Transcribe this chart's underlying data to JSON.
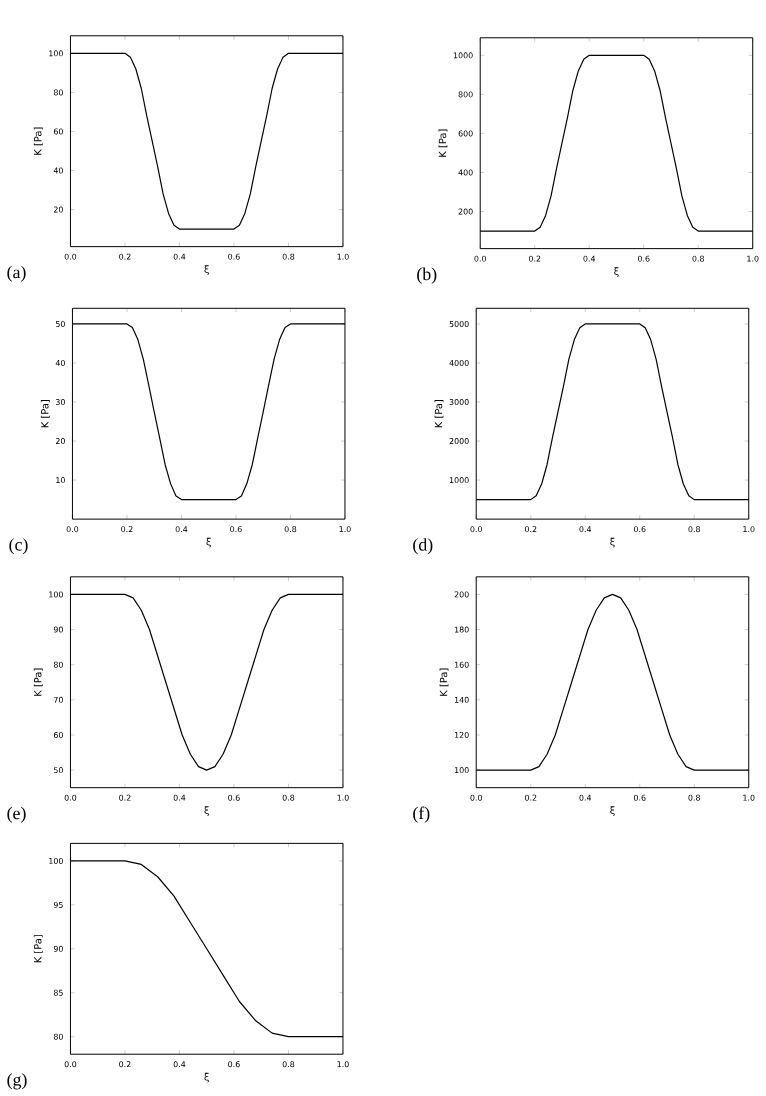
{
  "chart_data": [
    {
      "type": "line",
      "xlabel": "ξ",
      "ylabel": "K [Pa]",
      "annotations": [
        "(a)"
      ],
      "color": "#000000",
      "xlim": [
        0,
        1
      ],
      "ylim": [
        1,
        109
      ],
      "xticks": [
        {
          "value": 0,
          "label": "0.0"
        },
        {
          "value": 0.2,
          "label": "0.2"
        },
        {
          "value": 0.4,
          "label": "0.4"
        },
        {
          "value": 0.6,
          "label": "0.6"
        },
        {
          "value": 0.8,
          "label": "0.8"
        },
        {
          "value": 1,
          "label": "1.0"
        }
      ],
      "yticks": [
        20,
        40,
        60,
        80,
        100
      ],
      "x": [
        0,
        0.2,
        0.22,
        0.24,
        0.26,
        0.28,
        0.3,
        0.32,
        0.34,
        0.36,
        0.38,
        0.4,
        0.6,
        0.62,
        0.64,
        0.66,
        0.68,
        0.7,
        0.72,
        0.74,
        0.76,
        0.78,
        0.8,
        1
      ],
      "values": [
        100,
        100,
        98,
        92,
        82,
        68,
        55,
        42,
        28,
        18,
        12,
        10,
        10,
        12,
        18,
        28,
        42,
        55,
        68,
        82,
        92,
        98,
        100,
        100
      ]
    },
    {
      "type": "line",
      "xlabel": "ξ",
      "ylabel": "K [Pa]",
      "annotations": [
        "(b)"
      ],
      "color": "#000000",
      "xlim": [
        0,
        1
      ],
      "ylim": [
        10,
        1090
      ],
      "xticks": [
        {
          "value": 0,
          "label": "0.0"
        },
        {
          "value": 0.2,
          "label": "0.2"
        },
        {
          "value": 0.4,
          "label": "0.4"
        },
        {
          "value": 0.6,
          "label": "0.6"
        },
        {
          "value": 0.8,
          "label": "0.8"
        },
        {
          "value": 1,
          "label": "1.0"
        }
      ],
      "yticks": [
        200,
        400,
        600,
        800,
        1000
      ],
      "x": [
        0,
        0.2,
        0.22,
        0.24,
        0.26,
        0.28,
        0.3,
        0.32,
        0.34,
        0.36,
        0.38,
        0.4,
        0.6,
        0.62,
        0.64,
        0.66,
        0.68,
        0.7,
        0.72,
        0.74,
        0.76,
        0.78,
        0.8,
        1
      ],
      "values": [
        100,
        100,
        120,
        180,
        280,
        420,
        550,
        680,
        820,
        920,
        980,
        1000,
        1000,
        980,
        920,
        820,
        680,
        550,
        420,
        280,
        180,
        120,
        100,
        100
      ]
    },
    {
      "type": "line",
      "xlabel": "ξ",
      "ylabel": "K [Pa]",
      "annotations": [
        "(c)"
      ],
      "color": "#000000",
      "xlim": [
        0,
        1
      ],
      "ylim": [
        0,
        54
      ],
      "xticks": [
        {
          "value": 0,
          "label": "0.0"
        },
        {
          "value": 0.2,
          "label": "0.2"
        },
        {
          "value": 0.4,
          "label": "0.4"
        },
        {
          "value": 0.6,
          "label": "0.6"
        },
        {
          "value": 0.8,
          "label": "0.8"
        },
        {
          "value": 1,
          "label": "1.0"
        }
      ],
      "yticks": [
        10,
        20,
        30,
        40,
        50
      ],
      "x": [
        0,
        0.2,
        0.22,
        0.24,
        0.26,
        0.28,
        0.3,
        0.32,
        0.34,
        0.36,
        0.38,
        0.4,
        0.6,
        0.62,
        0.64,
        0.66,
        0.68,
        0.7,
        0.72,
        0.74,
        0.76,
        0.78,
        0.8,
        1
      ],
      "values": [
        50,
        50,
        49.1,
        46,
        41,
        34.3,
        27.5,
        20.8,
        14,
        9.1,
        5.9,
        5,
        5,
        5.9,
        9.1,
        14,
        20.8,
        27.5,
        34.3,
        41,
        46,
        49.1,
        50,
        50
      ]
    },
    {
      "type": "line",
      "xlabel": "ξ",
      "ylabel": "K [Pa]",
      "annotations": [
        "(d)"
      ],
      "color": "#000000",
      "xlim": [
        0,
        1
      ],
      "ylim": [
        0,
        5400
      ],
      "xticks": [
        {
          "value": 0,
          "label": "0.0"
        },
        {
          "value": 0.2,
          "label": "0.2"
        },
        {
          "value": 0.4,
          "label": "0.4"
        },
        {
          "value": 0.6,
          "label": "0.6"
        },
        {
          "value": 0.8,
          "label": "0.8"
        },
        {
          "value": 1,
          "label": "1.0"
        }
      ],
      "yticks": [
        1000,
        2000,
        3000,
        4000,
        5000
      ],
      "x": [
        0,
        0.2,
        0.22,
        0.24,
        0.26,
        0.28,
        0.3,
        0.32,
        0.34,
        0.36,
        0.38,
        0.4,
        0.6,
        0.62,
        0.64,
        0.66,
        0.68,
        0.7,
        0.72,
        0.74,
        0.76,
        0.78,
        0.8,
        1
      ],
      "values": [
        500,
        500,
        600,
        900,
        1400,
        2100,
        2750,
        3400,
        4100,
        4600,
        4900,
        5000,
        5000,
        4900,
        4600,
        4100,
        3400,
        2750,
        2100,
        1400,
        900,
        600,
        500,
        500
      ]
    },
    {
      "type": "line",
      "xlabel": "ξ",
      "ylabel": "K [Pa]",
      "annotations": [
        "(e)"
      ],
      "color": "#000000",
      "xlim": [
        0,
        1
      ],
      "ylim": [
        45,
        105
      ],
      "xticks": [
        {
          "value": 0,
          "label": "0.0"
        },
        {
          "value": 0.2,
          "label": "0.2"
        },
        {
          "value": 0.4,
          "label": "0.4"
        },
        {
          "value": 0.6,
          "label": "0.6"
        },
        {
          "value": 0.8,
          "label": "0.8"
        },
        {
          "value": 1,
          "label": "1.0"
        }
      ],
      "yticks": [
        50,
        60,
        70,
        80,
        90,
        100
      ],
      "x": [
        0,
        0.2,
        0.23,
        0.26,
        0.29,
        0.32,
        0.35,
        0.38,
        0.41,
        0.44,
        0.47,
        0.5,
        0.53,
        0.56,
        0.59,
        0.62,
        0.65,
        0.68,
        0.71,
        0.74,
        0.77,
        0.8,
        1
      ],
      "values": [
        100,
        100,
        99,
        95.5,
        90,
        82.5,
        75,
        67.5,
        60,
        54.5,
        51,
        50,
        51,
        54.5,
        60,
        67.5,
        75,
        82.5,
        90,
        95.5,
        99,
        100,
        100
      ]
    },
    {
      "type": "line",
      "xlabel": "ξ",
      "ylabel": "K [Pa]",
      "annotations": [
        "(f)"
      ],
      "color": "#000000",
      "xlim": [
        0,
        1
      ],
      "ylim": [
        90,
        210
      ],
      "xticks": [
        {
          "value": 0,
          "label": "0.0"
        },
        {
          "value": 0.2,
          "label": "0.2"
        },
        {
          "value": 0.4,
          "label": "0.4"
        },
        {
          "value": 0.6,
          "label": "0.6"
        },
        {
          "value": 0.8,
          "label": "0.8"
        },
        {
          "value": 1,
          "label": "1.0"
        }
      ],
      "yticks": [
        100,
        120,
        140,
        160,
        180,
        200
      ],
      "x": [
        0,
        0.2,
        0.23,
        0.26,
        0.29,
        0.32,
        0.35,
        0.38,
        0.41,
        0.44,
        0.47,
        0.5,
        0.53,
        0.56,
        0.59,
        0.62,
        0.65,
        0.68,
        0.71,
        0.74,
        0.77,
        0.8,
        1
      ],
      "values": [
        100,
        100,
        102,
        109,
        120,
        135,
        150,
        165,
        180,
        191,
        198,
        200,
        198,
        191,
        180,
        165,
        150,
        135,
        120,
        109,
        102,
        100,
        100
      ]
    },
    {
      "type": "line",
      "xlabel": "ξ",
      "ylabel": "K [Pa]",
      "annotations": [
        "(g)"
      ],
      "color": "#000000",
      "xlim": [
        0,
        1
      ],
      "ylim": [
        78,
        102
      ],
      "xticks": [
        {
          "value": 0,
          "label": "0.0"
        },
        {
          "value": 0.2,
          "label": "0.2"
        },
        {
          "value": 0.4,
          "label": "0.4"
        },
        {
          "value": 0.6,
          "label": "0.6"
        },
        {
          "value": 0.8,
          "label": "0.8"
        },
        {
          "value": 1,
          "label": "1.0"
        }
      ],
      "yticks": [
        80,
        85,
        90,
        95,
        100
      ],
      "x": [
        0,
        0.2,
        0.26,
        0.32,
        0.38,
        0.44,
        0.5,
        0.56,
        0.62,
        0.68,
        0.74,
        0.8,
        1
      ],
      "values": [
        100,
        100,
        99.6,
        98.2,
        96,
        93,
        90,
        87,
        84,
        81.8,
        80.4,
        80,
        80
      ]
    }
  ]
}
